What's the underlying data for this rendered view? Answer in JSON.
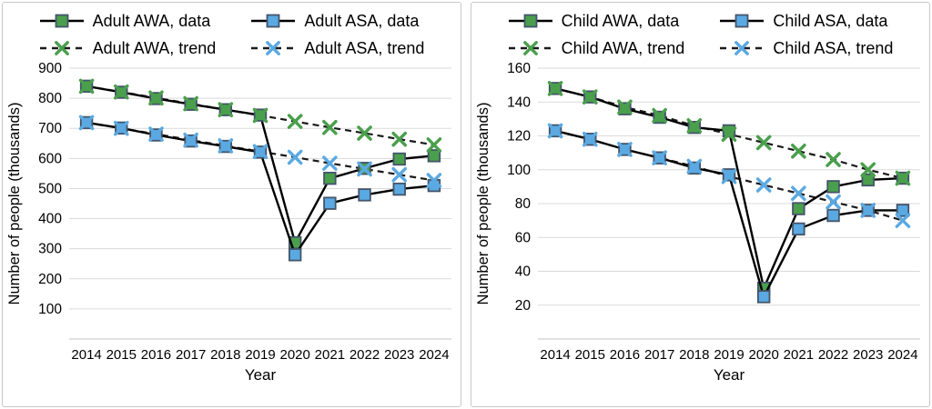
{
  "style": {
    "grid_color": "#DADADA",
    "axis_color": "#C3C3C3",
    "data_line_color": "#000000",
    "trend_line_color": "#1A1A1A",
    "marker_border_color": "#44546A",
    "text_color": "#000000",
    "panel_border_color": "#C9C9C9",
    "green": "#4A9F4C",
    "blue": "#5AA9E2"
  },
  "chart_data": [
    {
      "type": "line",
      "title": "",
      "xlabel": "Year",
      "ylabel": "Number of people (thousands)",
      "x": [
        "2014",
        "2015",
        "2016",
        "2017",
        "2018",
        "2019",
        "2020",
        "2021",
        "2022",
        "2023",
        "2024"
      ],
      "ylim": [
        0,
        900
      ],
      "yticks": [
        100,
        200,
        300,
        400,
        500,
        600,
        700,
        800,
        900
      ],
      "grid": true,
      "legend_position": "top",
      "series": [
        {
          "name": "Adult AWA, data",
          "role": "data",
          "marker": "square",
          "color": "#4A9F4C",
          "dashed": false,
          "values": [
            840,
            820,
            799,
            780,
            762,
            744,
            320,
            534,
            567,
            598,
            609
          ]
        },
        {
          "name": "Adult ASA, data",
          "role": "data",
          "marker": "square",
          "color": "#5AA9E2",
          "dashed": false,
          "values": [
            719,
            701,
            678,
            658,
            640,
            621,
            280,
            451,
            479,
            498,
            510
          ]
        },
        {
          "name": "Adult AWA, trend",
          "role": "trend",
          "marker": "x",
          "color": "#4A9F4C",
          "dashed": true,
          "values": [
            840,
            821,
            801,
            782,
            762,
            743,
            723,
            703,
            684,
            664,
            645
          ]
        },
        {
          "name": "Adult ASA, trend",
          "role": "trend",
          "marker": "x",
          "color": "#5AA9E2",
          "dashed": true,
          "values": [
            719,
            700,
            681,
            661,
            642,
            623,
            604,
            584,
            565,
            546,
            527
          ]
        }
      ]
    },
    {
      "type": "line",
      "title": "",
      "xlabel": "Year",
      "ylabel": "Number of people (thousands)",
      "x": [
        "2014",
        "2015",
        "2016",
        "2017",
        "2018",
        "2019",
        "2020",
        "2021",
        "2022",
        "2023",
        "2024"
      ],
      "ylim": [
        0,
        160
      ],
      "yticks": [
        20,
        40,
        60,
        80,
        100,
        120,
        140,
        160
      ],
      "grid": true,
      "legend_position": "top",
      "series": [
        {
          "name": "Child AWA, data",
          "role": "data",
          "marker": "square",
          "color": "#4A9F4C",
          "dashed": false,
          "values": [
            148,
            143,
            136,
            131,
            125,
            123,
            30,
            77,
            90,
            94,
            95
          ]
        },
        {
          "name": "Child ASA, data",
          "role": "data",
          "marker": "square",
          "color": "#5AA9E2",
          "dashed": false,
          "values": [
            123,
            118,
            112,
            107,
            101,
            97,
            25,
            65,
            73,
            76,
            76
          ]
        },
        {
          "name": "Child AWA, trend",
          "role": "trend",
          "marker": "x",
          "color": "#4A9F4C",
          "dashed": true,
          "values": [
            148,
            143,
            137,
            132,
            126,
            121,
            116,
            111,
            106,
            100,
            95
          ]
        },
        {
          "name": "Child ASA, trend",
          "role": "trend",
          "marker": "x",
          "color": "#5AA9E2",
          "dashed": true,
          "values": [
            123,
            118,
            112,
            107,
            102,
            96,
            91,
            86,
            81,
            76,
            70
          ]
        }
      ]
    }
  ]
}
